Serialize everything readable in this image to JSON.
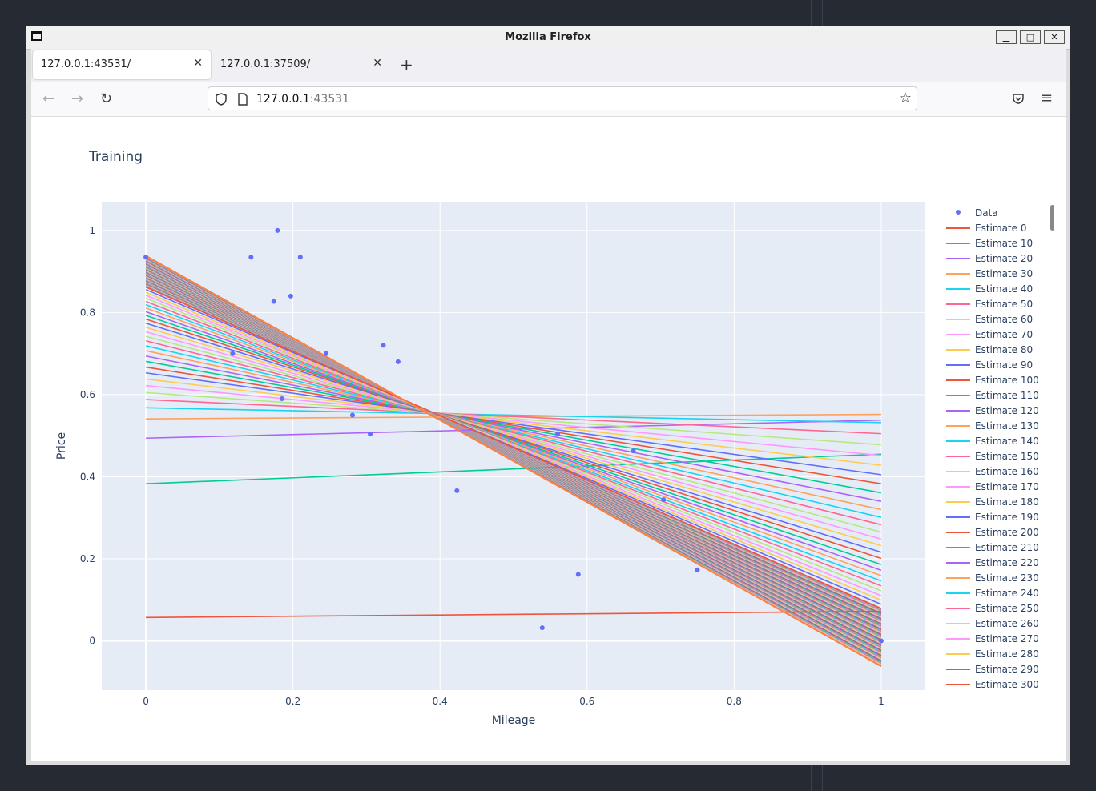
{
  "window": {
    "title": "Mozilla Firefox"
  },
  "tabs": [
    {
      "label": "127.0.0.1:43531/",
      "active": true
    },
    {
      "label": "127.0.0.1:37509/",
      "active": false
    }
  ],
  "url": {
    "host": "127.0.0.1",
    "port": ":43531"
  },
  "icons": {
    "back": "arrow-left-icon",
    "forward": "arrow-right-icon",
    "reload": "reload-icon",
    "bookmark": "star-icon",
    "pocket": "pocket-icon",
    "menu": "hamburger-menu-icon"
  },
  "chart_data": {
    "type": "line",
    "title": "Training",
    "xlabel": "Mileage",
    "ylabel": "Price",
    "xlim": [
      -0.06,
      1.06
    ],
    "ylim": [
      -0.12,
      1.07
    ],
    "x_ticks": [
      "0",
      "0.2",
      "0.4",
      "0.6",
      "0.8",
      "1"
    ],
    "y_ticks": [
      "0",
      "0.2",
      "0.4",
      "0.6",
      "0.8",
      "1"
    ],
    "grid": true,
    "legend_position": "right",
    "colors": [
      "#ef553b",
      "#00cc96",
      "#ab63fa",
      "#ffa15a",
      "#19d3f3",
      "#ff6692",
      "#b6e880",
      "#ff97ff",
      "#fecb52",
      "#636efa"
    ],
    "data_color": "#636efa",
    "scatter": {
      "name": "Data",
      "x": [
        0.0,
        0.143,
        0.179,
        0.21,
        0.174,
        0.197,
        0.118,
        0.245,
        0.185,
        0.323,
        0.343,
        0.281,
        0.305,
        0.423,
        0.539,
        0.588,
        0.56,
        0.663,
        0.704,
        0.75,
        1.0
      ],
      "y": [
        0.935,
        0.935,
        1.0,
        0.935,
        0.827,
        0.84,
        0.7,
        0.7,
        0.59,
        0.72,
        0.68,
        0.55,
        0.504,
        0.366,
        0.032,
        0.162,
        0.505,
        0.463,
        0.344,
        0.173,
        0.0
      ]
    },
    "pivot": {
      "x": 0.385,
      "y": 0.555
    },
    "estimates": [
      {
        "name": "Estimate 0",
        "y0": 0.057,
        "y1": 0.072
      },
      {
        "name": "Estimate 10",
        "y0": 0.383,
        "y1": 0.455
      },
      {
        "name": "Estimate 20",
        "y0": 0.494,
        "y1": 0.538
      },
      {
        "name": "Estimate 30",
        "y0": 0.541,
        "y1": 0.552
      },
      {
        "name": "Estimate 40",
        "y0": 0.568,
        "y1": 0.532
      },
      {
        "name": "Estimate 50",
        "y0": 0.588,
        "y1": 0.505
      },
      {
        "name": "Estimate 60",
        "y0": 0.605,
        "y1": 0.478
      },
      {
        "name": "Estimate 70",
        "y0": 0.622,
        "y1": 0.452
      },
      {
        "name": "Estimate 80",
        "y0": 0.638,
        "y1": 0.428
      },
      {
        "name": "Estimate 90",
        "y0": 0.653,
        "y1": 0.405
      },
      {
        "name": "Estimate 100",
        "y0": 0.667,
        "y1": 0.383
      },
      {
        "name": "Estimate 110",
        "y0": 0.681,
        "y1": 0.361
      },
      {
        "name": "Estimate 120",
        "y0": 0.694,
        "y1": 0.34
      },
      {
        "name": "Estimate 130",
        "y0": 0.707,
        "y1": 0.32
      },
      {
        "name": "Estimate 140",
        "y0": 0.719,
        "y1": 0.301
      },
      {
        "name": "Estimate 150",
        "y0": 0.731,
        "y1": 0.283
      },
      {
        "name": "Estimate 160",
        "y0": 0.742,
        "y1": 0.265
      },
      {
        "name": "Estimate 170",
        "y0": 0.753,
        "y1": 0.248
      },
      {
        "name": "Estimate 180",
        "y0": 0.764,
        "y1": 0.232
      },
      {
        "name": "Estimate 190",
        "y0": 0.774,
        "y1": 0.216
      },
      {
        "name": "Estimate 200",
        "y0": 0.784,
        "y1": 0.201
      },
      {
        "name": "Estimate 210",
        "y0": 0.793,
        "y1": 0.186
      },
      {
        "name": "Estimate 220",
        "y0": 0.802,
        "y1": 0.172
      },
      {
        "name": "Estimate 230",
        "y0": 0.811,
        "y1": 0.159
      },
      {
        "name": "Estimate 240",
        "y0": 0.819,
        "y1": 0.146
      },
      {
        "name": "Estimate 250",
        "y0": 0.827,
        "y1": 0.134
      },
      {
        "name": "Estimate 260",
        "y0": 0.835,
        "y1": 0.122
      },
      {
        "name": "Estimate 270",
        "y0": 0.842,
        "y1": 0.11
      },
      {
        "name": "Estimate 280",
        "y0": 0.849,
        "y1": 0.099
      },
      {
        "name": "Estimate 290",
        "y0": 0.856,
        "y1": 0.089
      },
      {
        "name": "Estimate 300",
        "y0": 0.862,
        "y1": 0.079
      }
    ],
    "converged_line": {
      "y0": 0.938,
      "y1": -0.062
    }
  }
}
